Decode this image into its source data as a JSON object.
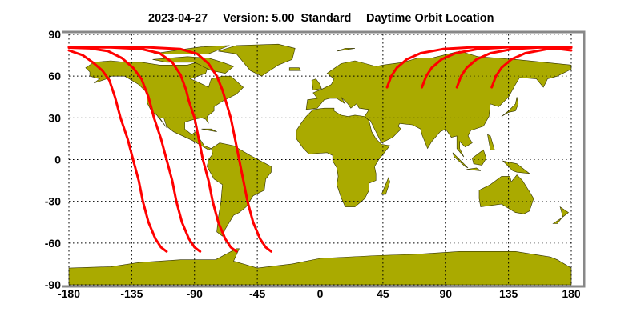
{
  "title": {
    "date": "2023-04-27",
    "version": "Version: 5.00  Standard",
    "product": "Daytime Orbit Location"
  },
  "colors": {
    "land": "#aaaa00",
    "coastline": "#333300",
    "orbit_track": "#ff0000",
    "grid": "#000000",
    "frame": "#888888"
  },
  "chart_data": {
    "type": "map",
    "projection": "equirectangular",
    "xlim": [
      -180,
      180
    ],
    "ylim": [
      -90,
      90
    ],
    "grid": true,
    "x_ticks": [
      "-180",
      "-135",
      "-90",
      "-45",
      "0",
      "45",
      "90",
      "135",
      "180"
    ],
    "y_ticks": [
      "90",
      "60",
      "30",
      "0",
      "-30",
      "-60",
      "-90"
    ],
    "orbit_tracks": [
      {
        "points": [
          [
            -180,
            78.5
          ],
          [
            -170,
            75
          ],
          [
            -163,
            70
          ],
          [
            -156,
            64
          ],
          [
            -151,
            57
          ],
          [
            -147,
            45
          ],
          [
            -143,
            30
          ],
          [
            -138,
            15
          ],
          [
            -134,
            0
          ],
          [
            -130,
            -15
          ],
          [
            -127,
            -30
          ],
          [
            -123,
            -45
          ],
          [
            -118,
            -57
          ],
          [
            -114,
            -63
          ],
          [
            -110,
            -66
          ]
        ]
      },
      {
        "points": [
          [
            -180,
            80.5
          ],
          [
            -165,
            80
          ],
          [
            -152,
            78
          ],
          [
            -142,
            73
          ],
          [
            -134,
            66
          ],
          [
            -128,
            58
          ],
          [
            -123,
            45
          ],
          [
            -119,
            30
          ],
          [
            -114,
            15
          ],
          [
            -110,
            0
          ],
          [
            -106,
            -15
          ],
          [
            -103,
            -30
          ],
          [
            -99,
            -45
          ],
          [
            -94,
            -57
          ],
          [
            -90,
            -63
          ],
          [
            -86,
            -66
          ]
        ]
      },
      {
        "points": [
          [
            -180,
            80.8
          ],
          [
            -150,
            80.6
          ],
          [
            -128,
            79.5
          ],
          [
            -115,
            76.5
          ],
          [
            -106,
            70
          ],
          [
            -100,
            61
          ],
          [
            -96,
            50
          ],
          [
            -94,
            42
          ],
          [
            -90,
            30
          ],
          [
            -87,
            15
          ],
          [
            -84,
            0
          ],
          [
            -80,
            -15
          ],
          [
            -77,
            -30
          ],
          [
            -73,
            -45
          ],
          [
            -68,
            -57
          ],
          [
            -64,
            -63
          ],
          [
            -60,
            -66
          ]
        ]
      },
      {
        "points": [
          [
            -180,
            81
          ],
          [
            -125,
            80.8
          ],
          [
            -100,
            79.5
          ],
          [
            -88,
            76
          ],
          [
            -80,
            69
          ],
          [
            -74,
            60
          ],
          [
            -70,
            50
          ],
          [
            -67,
            40
          ],
          [
            -64,
            30
          ],
          [
            -61,
            15
          ],
          [
            -58,
            0
          ],
          [
            -55,
            -15
          ],
          [
            -52,
            -30
          ],
          [
            -48,
            -45
          ],
          [
            -43,
            -57
          ],
          [
            -39,
            -63
          ],
          [
            -35,
            -66
          ]
        ]
      },
      {
        "points": [
          [
            48,
            52
          ],
          [
            51,
            60
          ],
          [
            55,
            66
          ],
          [
            62,
            72
          ],
          [
            72,
            76.5
          ],
          [
            88,
            79.5
          ],
          [
            110,
            80.8
          ],
          [
            180,
            81
          ]
        ]
      },
      {
        "points": [
          [
            73,
            52
          ],
          [
            76,
            60
          ],
          [
            80,
            66
          ],
          [
            87,
            72
          ],
          [
            97,
            76.5
          ],
          [
            113,
            79.5
          ],
          [
            135,
            80.8
          ],
          [
            180,
            81
          ]
        ]
      },
      {
        "points": [
          [
            98,
            52
          ],
          [
            101,
            60
          ],
          [
            105,
            66
          ],
          [
            112,
            72
          ],
          [
            122,
            76.5
          ],
          [
            138,
            79.5
          ],
          [
            160,
            80.8
          ],
          [
            180,
            81
          ]
        ]
      },
      {
        "points": [
          [
            123,
            52
          ],
          [
            126,
            60
          ],
          [
            130,
            66
          ],
          [
            137,
            72
          ],
          [
            147,
            76.5
          ],
          [
            163,
            79.5
          ],
          [
            180,
            80.5
          ]
        ]
      },
      {
        "points": [
          [
            150,
            81
          ],
          [
            165,
            80.3
          ],
          [
            180,
            78.5
          ]
        ]
      }
    ]
  }
}
